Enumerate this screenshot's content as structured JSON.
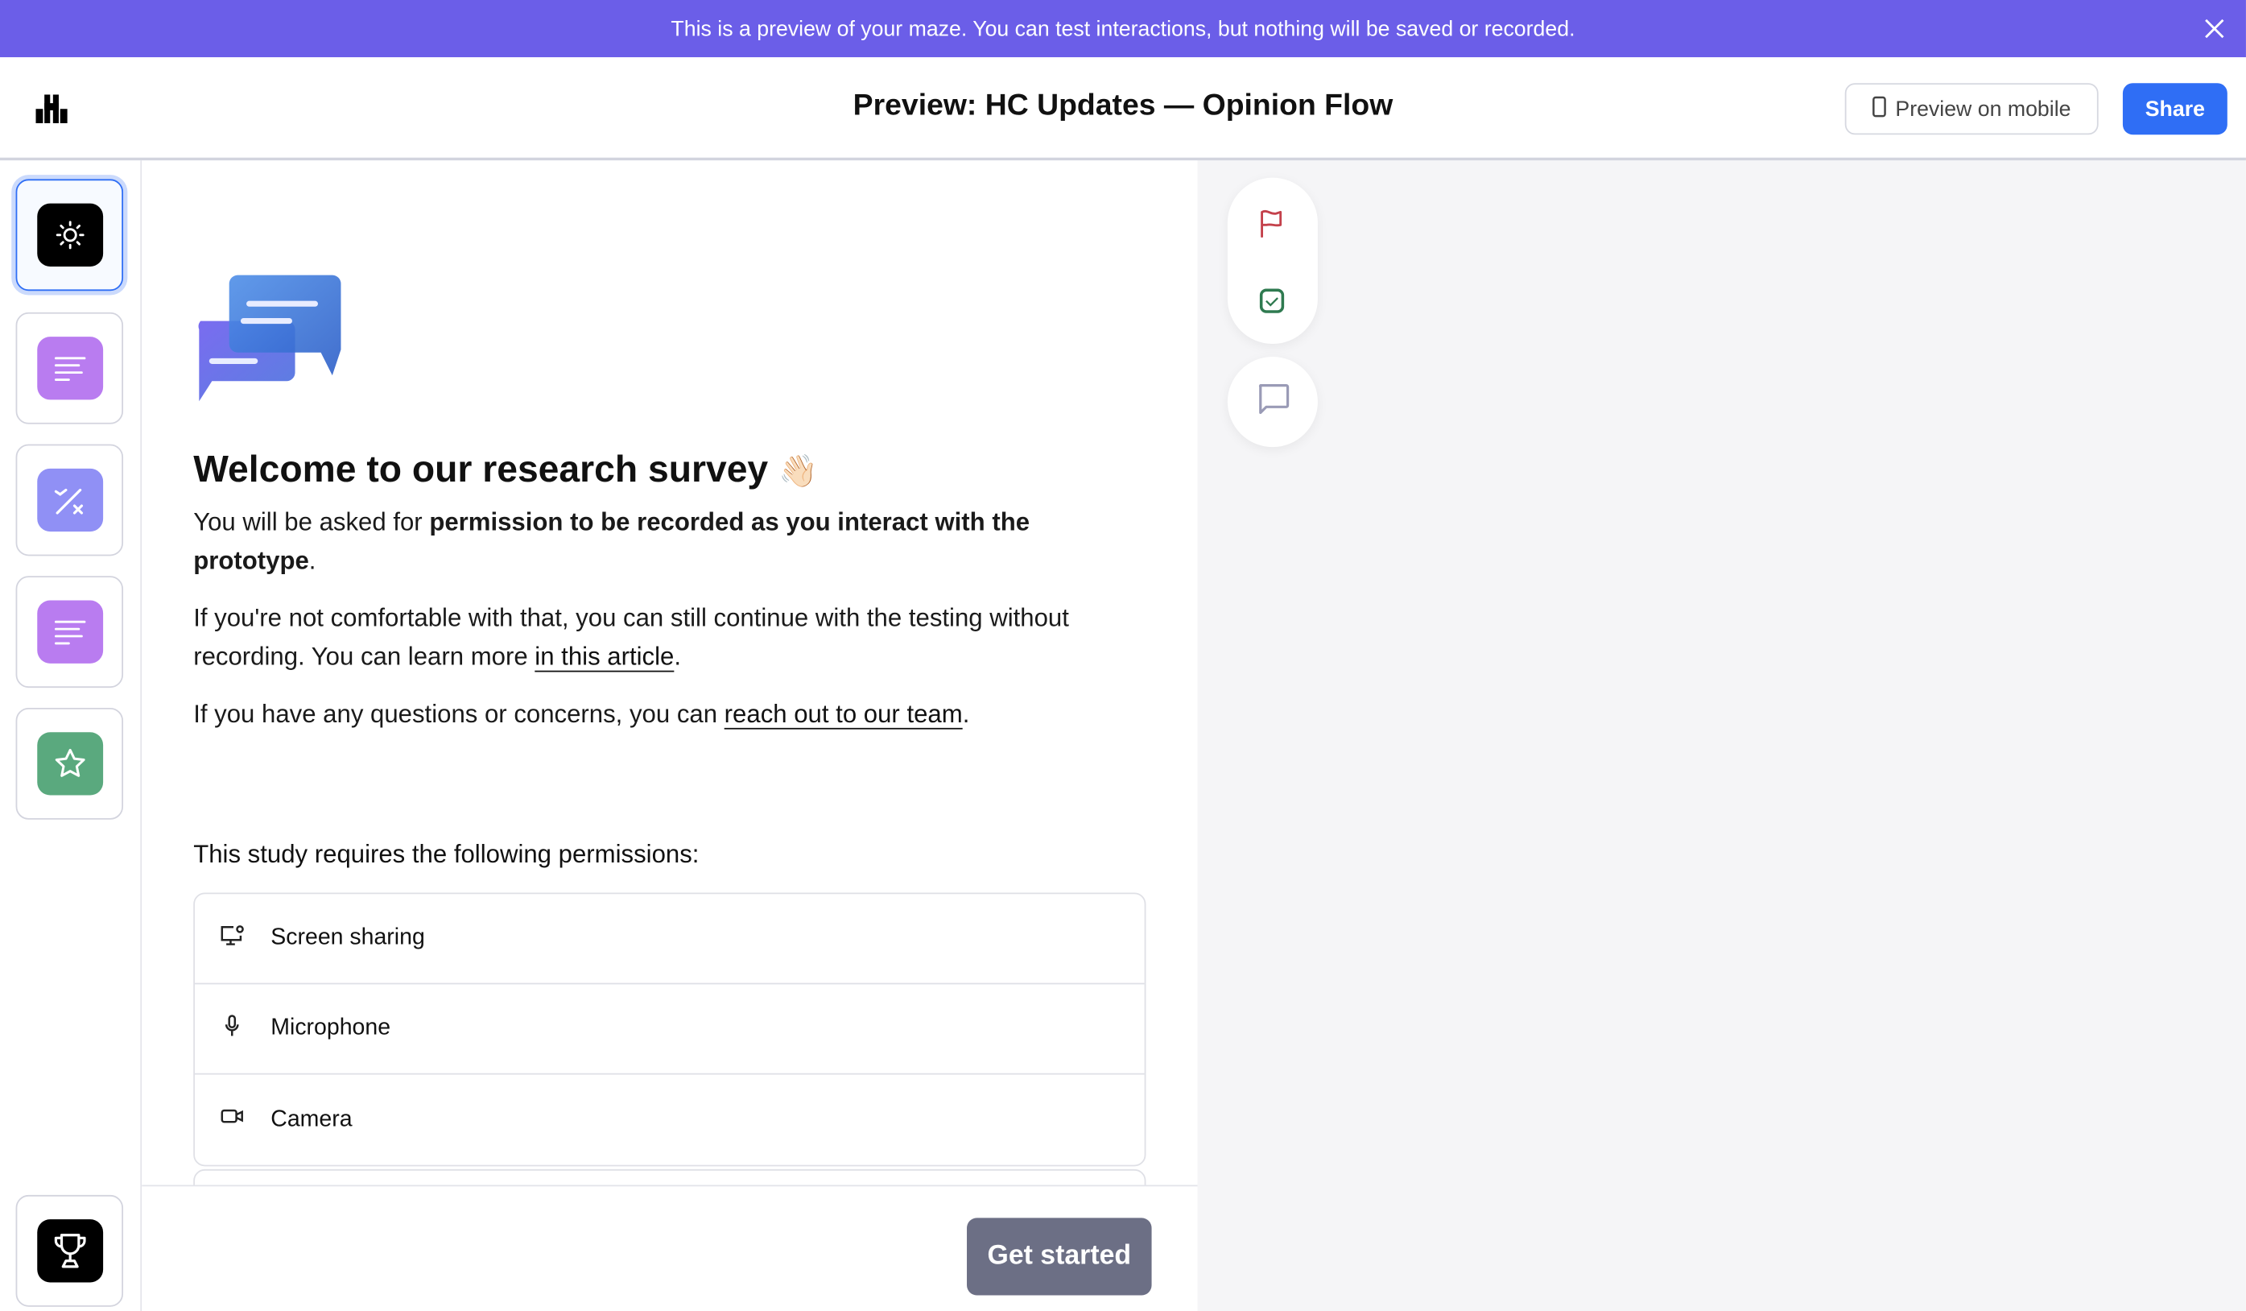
{
  "banner": {
    "text": "This is a preview of your maze. You can test interactions, but nothing will be saved or recorded.",
    "color": "#6b5ee8"
  },
  "header": {
    "title": "Preview: HC Updates — Opinion Flow",
    "preview_mobile_label": "Preview on mobile",
    "share_label": "Share",
    "accent": "#2f6ef5"
  },
  "sidebar": {
    "blocks": [
      {
        "icon": "sun-icon",
        "color": "#000000",
        "active": true
      },
      {
        "icon": "text-lines-icon",
        "color": "#b97cf0"
      },
      {
        "icon": "yes-no-icon",
        "color": "#9090f5"
      },
      {
        "icon": "text-lines-icon",
        "color": "#b97cf0"
      },
      {
        "icon": "star-icon",
        "color": "#5aa97e"
      },
      {
        "icon": "trophy-icon",
        "color": "#000000"
      }
    ]
  },
  "main": {
    "heading": "Welcome to our research survey",
    "heading_emoji": "👋🏻",
    "p1_prefix": "You will be asked for ",
    "p1_bold": "permission to be recorded as you interact with the prototype",
    "p1_suffix": ".",
    "p2_prefix": "If you're not comfortable with that, you can still continue with the testing without recording. You can learn more ",
    "p2_link": "in this article",
    "p2_suffix": ".",
    "p3_prefix": "If you have any questions or concerns, you can ",
    "p3_link": "reach out to our team",
    "p3_suffix": ".",
    "permissions_label": "This study requires the following permissions:",
    "permissions": [
      {
        "icon": "screen-share-icon",
        "label": "Screen sharing"
      },
      {
        "icon": "microphone-icon",
        "label": "Microphone"
      },
      {
        "icon": "camera-icon",
        "label": "Camera"
      }
    ],
    "get_started_label": "Get started"
  },
  "right_panel": {
    "tools": [
      "flag-icon",
      "checkbox-icon",
      "comment-icon"
    ]
  }
}
